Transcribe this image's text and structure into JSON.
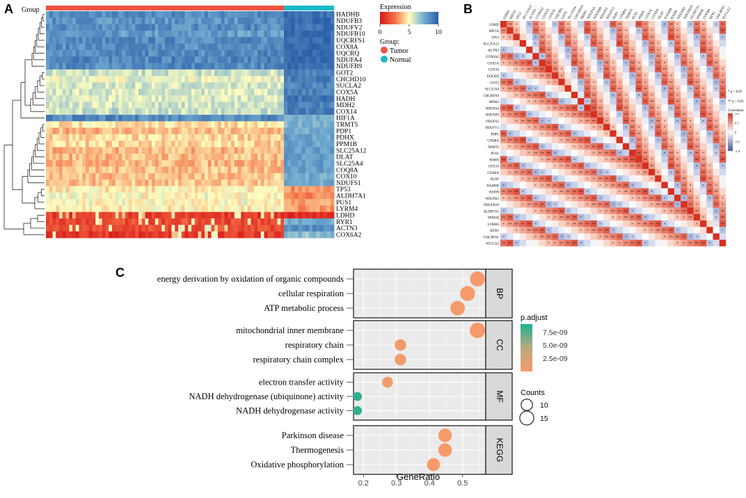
{
  "panel_labels": {
    "a": "A",
    "b": "B",
    "c": "C"
  },
  "chart_data": [
    {
      "type": "heatmap",
      "panel": "A",
      "group_label": "Group",
      "legend": {
        "expression_title": "Expression",
        "expression_ticks": [
          "0",
          "5",
          "10"
        ],
        "expression_range": [
          0,
          10
        ],
        "group_title": "Group:",
        "groups": [
          {
            "name": "Tumor",
            "color": "#ef5340"
          },
          {
            "name": "Normal",
            "color": "#19b9c8"
          }
        ]
      },
      "genes": [
        "HADHB",
        "NDUFB3",
        "NDUFV2",
        "NDUFB10",
        "UQCRFS1",
        "COX8A",
        "UQCRQ",
        "NDUFA4",
        "NDUFB9",
        "GOT2",
        "CHCHD10",
        "SUCLA2",
        "COX5A",
        "HADH",
        "MDH2",
        "COX14",
        "HIF1A",
        "TRMT5",
        "PDP1",
        "PDHX",
        "PPM1B",
        "SLC25A12",
        "DLAT",
        "SLC25A4",
        "COQ8A",
        "COX10",
        "NDUFS1",
        "TP53",
        "ALDH7A1",
        "PUS1",
        "LYRM4",
        "LDHD",
        "RYR1",
        "ACTN3",
        "COX6A2"
      ],
      "tumor_mean": [
        8.5,
        8.3,
        8.5,
        8.0,
        8.6,
        8.5,
        8.6,
        8.7,
        8.6,
        6.0,
        5.4,
        5.8,
        5.7,
        5.6,
        5.8,
        6.0,
        8.6,
        4.5,
        3.8,
        4.3,
        4.3,
        3.8,
        3.9,
        3.8,
        3.9,
        4.0,
        4.0,
        4.7,
        5.0,
        5.0,
        4.8,
        1.0,
        1.5,
        1.5,
        1.0
      ],
      "normal_mean": [
        9.4,
        9.5,
        9.5,
        9.6,
        9.7,
        9.7,
        9.8,
        9.8,
        9.7,
        9.0,
        9.0,
        8.8,
        8.8,
        9.2,
        8.9,
        9.0,
        7.5,
        7.3,
        7.5,
        7.8,
        7.8,
        8.0,
        8.0,
        8.0,
        8.0,
        7.6,
        7.5,
        3.2,
        3.0,
        3.5,
        3.2,
        0.6,
        7.5,
        8.5,
        7.0
      ]
    },
    {
      "type": "heatmap",
      "panel": "B",
      "variables": [
        "LDHD",
        "HIF1A",
        "TP53",
        "SLC25A12",
        "ACTN3",
        "COX6A2",
        "COX5A",
        "COX10",
        "UQCRQ",
        "GOT2",
        "SLC25A4",
        "CHCHD10",
        "MDH2",
        "NDUFA4",
        "NDUFB9",
        "NDUFS1",
        "NDUFV2",
        "PDP1",
        "COQ8A",
        "TRMT5",
        "PUS1",
        "PDHX",
        "COX14",
        "COX8A",
        "DLAT",
        "HADHB",
        "HADH",
        "NDUFB3",
        "NDUFB10",
        "ALDH7A1",
        "PPM1B",
        "LYRM4",
        "RYR1",
        "UQCRFS1",
        "SUCLA2"
      ],
      "significance_legend": [
        "* p < 0.05",
        "** p < 0.01"
      ],
      "colorbar_title": "Correlation",
      "colorbar_ticks": [
        "1.0",
        "0.5",
        "0",
        "-0.5",
        "-1.0"
      ],
      "colorbar_range": [
        -1,
        1
      ]
    },
    {
      "type": "scatter",
      "panel": "C",
      "xlabel": "GeneRatio",
      "xlim": [
        0.17,
        0.57
      ],
      "xticks": [
        "0.2",
        "0.3",
        "0.4",
        "0.5"
      ],
      "xtick_values": [
        0.2,
        0.3,
        0.4,
        0.5
      ],
      "color_title": "p.adjust",
      "color_ticks": [
        "7.5e-09",
        "5.0e-09",
        "2.5e-09"
      ],
      "color_tick_values": [
        7.5e-09,
        5e-09,
        2.5e-09
      ],
      "color_range": [
        0,
        9e-09
      ],
      "size_title": "Counts",
      "size_ticks": [
        "10",
        "15"
      ],
      "size_tick_values": [
        10,
        15
      ],
      "facets": [
        {
          "name": "BP",
          "terms": [
            {
              "label": "energy derivation by oxidation of organic compounds",
              "gene_ratio": 0.545,
              "count": 17,
              "p_adjust": 1e-10
            },
            {
              "label": "cellular respiration",
              "gene_ratio": 0.515,
              "count": 17,
              "p_adjust": 1e-10
            },
            {
              "label": "ATP metabolic process",
              "gene_ratio": 0.485,
              "count": 16,
              "p_adjust": 1.5e-10
            }
          ]
        },
        {
          "name": "CC",
          "terms": [
            {
              "label": "mitochondrial inner membrane",
              "gene_ratio": 0.545,
              "count": 18,
              "p_adjust": 1e-10
            },
            {
              "label": "respiratory chain",
              "gene_ratio": 0.312,
              "count": 10,
              "p_adjust": 4e-10
            },
            {
              "label": "respiratory chain complex",
              "gene_ratio": 0.312,
              "count": 10,
              "p_adjust": 4e-10
            }
          ]
        },
        {
          "name": "MF",
          "terms": [
            {
              "label": "electron transfer activity",
              "gene_ratio": 0.273,
              "count": 9,
              "p_adjust": 5e-10
            },
            {
              "label": "NADH dehydrogenase (ubiquinone) activity",
              "gene_ratio": 0.182,
              "count": 6,
              "p_adjust": 8.5e-09
            },
            {
              "label": "NADH dehydrogenase activity",
              "gene_ratio": 0.182,
              "count": 6,
              "p_adjust": 8.5e-09
            }
          ]
        },
        {
          "name": "KEGG",
          "terms": [
            {
              "label": "Parkinson disease",
              "gene_ratio": 0.447,
              "count": 14,
              "p_adjust": 1e-10
            },
            {
              "label": "Thermogenesis",
              "gene_ratio": 0.447,
              "count": 14,
              "p_adjust": 1e-10
            },
            {
              "label": "Oxidative phosphorylation",
              "gene_ratio": 0.412,
              "count": 13,
              "p_adjust": 1e-10
            }
          ]
        }
      ]
    }
  ]
}
